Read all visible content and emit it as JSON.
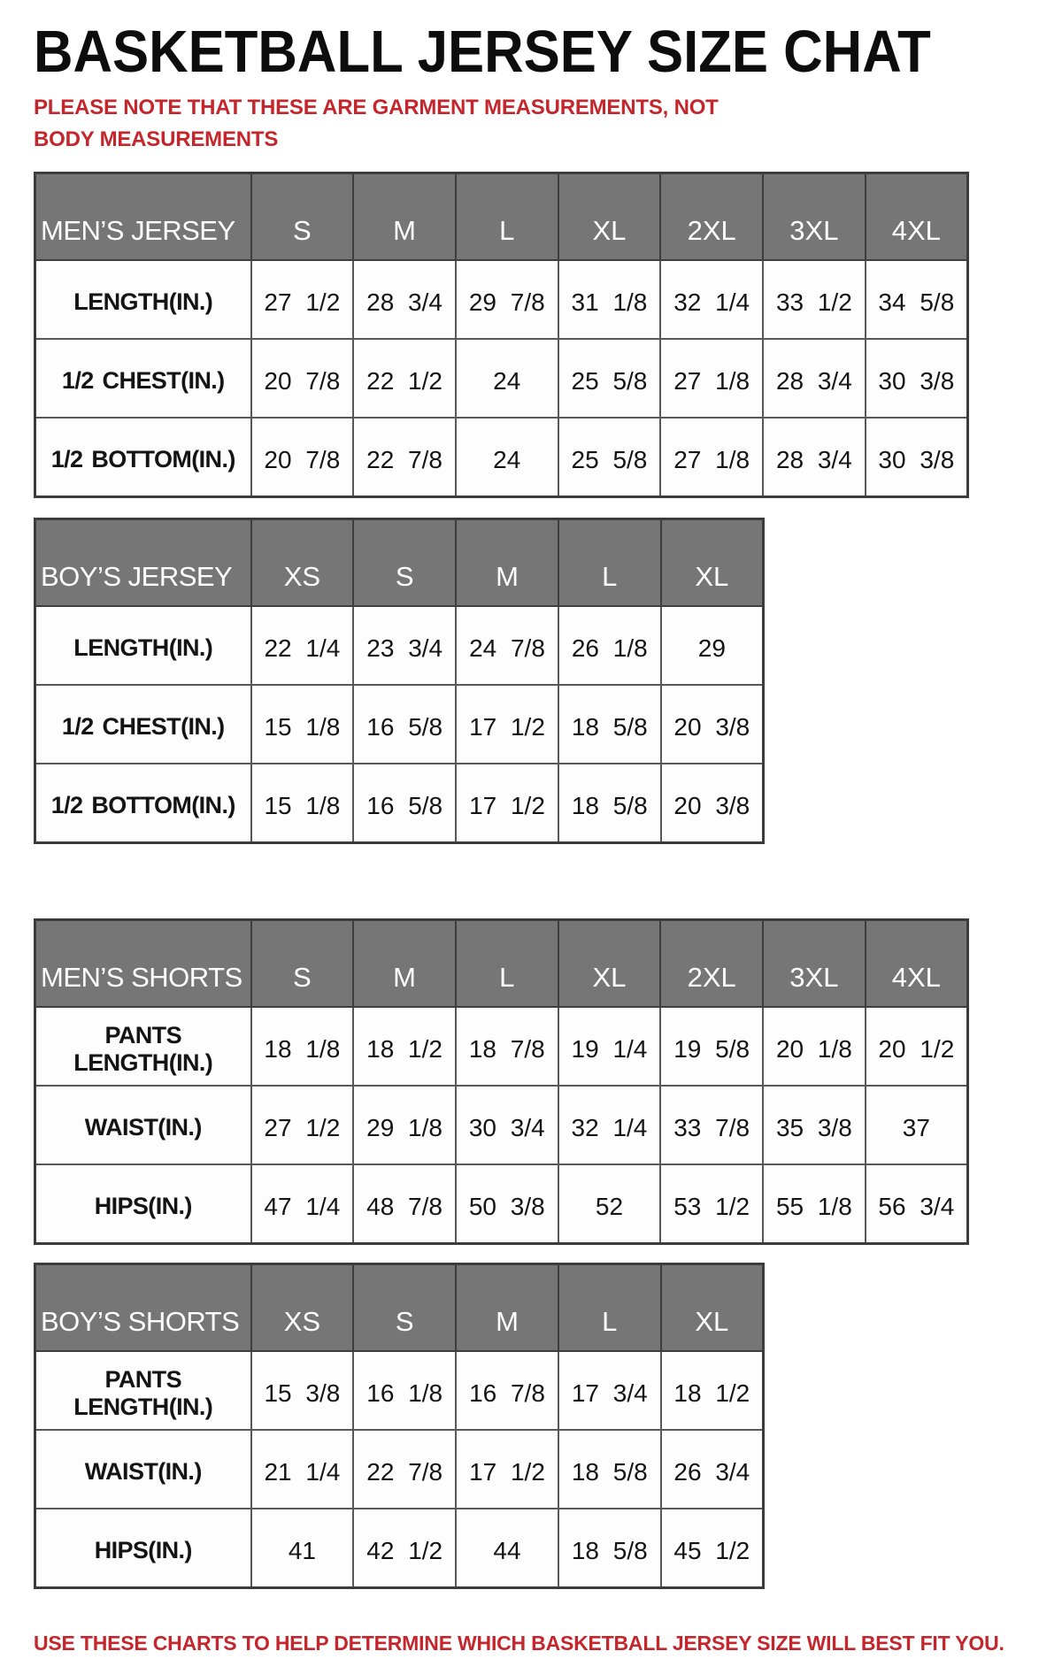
{
  "page": {
    "title": "BASKETBALL JERSEY SIZE CHAT",
    "note_top": "PLEASE NOTE THAT THESE ARE GARMENT MEASUREMENTS, NOT BODY MEASUREMENTS",
    "note_bottom": "USE THESE CHARTS TO HELP DETERMINE WHICH BASKETBALL JERSEY SIZE WILL BEST FIT YOU.",
    "colors": {
      "note_red": "#c5262c",
      "header_bg": "#767676",
      "header_text": "#ffffff",
      "border_dark": "#3c3c3c",
      "border_light": "#575757"
    }
  },
  "tables": [
    {
      "id": "mens-jersey",
      "label": "MEN’S JERSEY",
      "sizes": [
        "S",
        "M",
        "L",
        "XL",
        "2XL",
        "3XL",
        "4XL"
      ],
      "rows": [
        {
          "label": "LENGTH(IN.)",
          "values": [
            "27 1/2",
            "28 3/4",
            "29 7/8",
            "31 1/8",
            "32 1/4",
            "33 1/2",
            "34 5/8"
          ]
        },
        {
          "label": "1/2 CHEST(IN.)",
          "values": [
            "20 7/8",
            "22 1/2",
            "24",
            "25 5/8",
            "27 1/8",
            "28 3/4",
            "30 3/8"
          ]
        },
        {
          "label": "1/2 BOTTOM(IN.)",
          "values": [
            "20 7/8",
            "22 7/8",
            "24",
            "25 5/8",
            "27 1/8",
            "28 3/4",
            "30 3/8"
          ]
        }
      ]
    },
    {
      "id": "boys-jersey",
      "label": "BOY’S JERSEY",
      "sizes": [
        "XS",
        "S",
        "M",
        "L",
        "XL"
      ],
      "rows": [
        {
          "label": "LENGTH(IN.)",
          "values": [
            "22 1/4",
            "23 3/4",
            "24 7/8",
            "26 1/8",
            "29"
          ]
        },
        {
          "label": "1/2 CHEST(IN.)",
          "values": [
            "15 1/8",
            "16 5/8",
            "17 1/2",
            "18 5/8",
            "20 3/8"
          ]
        },
        {
          "label": "1/2 BOTTOM(IN.)",
          "values": [
            "15 1/8",
            "16 5/8",
            "17 1/2",
            "18 5/8",
            "20 3/8"
          ]
        }
      ]
    },
    {
      "id": "mens-shorts",
      "label": "MEN’S SHORTS",
      "sizes": [
        "S",
        "M",
        "L",
        "XL",
        "2XL",
        "3XL",
        "4XL"
      ],
      "rows": [
        {
          "label": "PANTS LENGTH(IN.)",
          "values": [
            "18 1/8",
            "18 1/2",
            "18 7/8",
            "19 1/4",
            "19 5/8",
            "20 1/8",
            "20 1/2"
          ]
        },
        {
          "label": "WAIST(IN.)",
          "values": [
            "27 1/2",
            "29 1/8",
            "30 3/4",
            "32 1/4",
            "33 7/8",
            "35 3/8",
            "37"
          ]
        },
        {
          "label": "HIPS(IN.)",
          "values": [
            "47 1/4",
            "48 7/8",
            "50 3/8",
            "52",
            "53 1/2",
            "55 1/8",
            "56 3/4"
          ]
        }
      ]
    },
    {
      "id": "boys-shorts",
      "label": "BOY’S SHORTS",
      "sizes": [
        "XS",
        "S",
        "M",
        "L",
        "XL"
      ],
      "rows": [
        {
          "label": "PANTS LENGTH(IN.)",
          "values": [
            "15 3/8",
            "16 1/8",
            "16 7/8",
            "17 3/4",
            "18 1/2"
          ]
        },
        {
          "label": "WAIST(IN.)",
          "values": [
            "21 1/4",
            "22 7/8",
            "17 1/2",
            "18 5/8",
            "26 3/4"
          ]
        },
        {
          "label": "HIPS(IN.)",
          "values": [
            "41",
            "42 1/2",
            "44",
            "18 5/8",
            "45 1/2"
          ]
        }
      ]
    }
  ]
}
